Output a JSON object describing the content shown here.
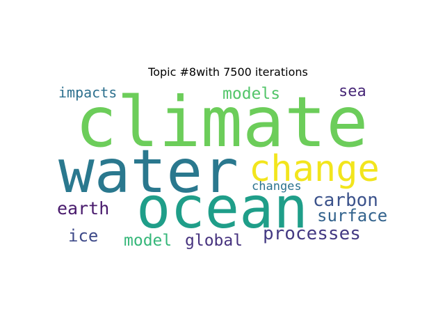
{
  "title": "Topic #8with 7500 iterations",
  "chart_data": {
    "type": "wordcloud",
    "title": "Topic #8with 7500 iterations",
    "words": [
      {
        "text": "climate",
        "weight": 1.0,
        "color": "#6ccd5a"
      },
      {
        "text": "water",
        "weight": 0.86,
        "color": "#2a788e"
      },
      {
        "text": "ocean",
        "weight": 0.82,
        "color": "#1f9e89"
      },
      {
        "text": "change",
        "weight": 0.52,
        "color": "#f2e51d"
      },
      {
        "text": "processes",
        "weight": 0.26,
        "color": "#443a83"
      },
      {
        "text": "carbon",
        "weight": 0.26,
        "color": "#3b528b"
      },
      {
        "text": "earth",
        "weight": 0.25,
        "color": "#481a6c"
      },
      {
        "text": "surface",
        "weight": 0.24,
        "color": "#33638d"
      },
      {
        "text": "ice",
        "weight": 0.24,
        "color": "#3e4a89"
      },
      {
        "text": "models",
        "weight": 0.23,
        "color": "#52c569"
      },
      {
        "text": "model",
        "weight": 0.23,
        "color": "#35b779"
      },
      {
        "text": "global",
        "weight": 0.23,
        "color": "#46327e"
      },
      {
        "text": "sea",
        "weight": 0.22,
        "color": "#482878"
      },
      {
        "text": "impacts",
        "weight": 0.2,
        "color": "#2d708e"
      },
      {
        "text": "changes",
        "weight": 0.17,
        "color": "#2c728e"
      }
    ]
  }
}
